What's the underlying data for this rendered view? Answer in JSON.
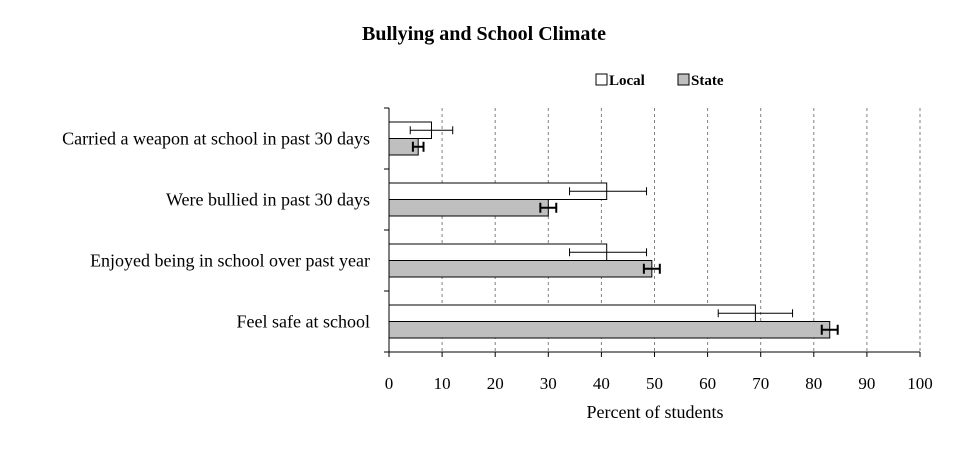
{
  "chart_data": {
    "type": "bar",
    "orientation": "horizontal",
    "title": "Bullying and School Climate",
    "xlabel": "Percent of students",
    "ylabel": "",
    "xlim": [
      0,
      100
    ],
    "xticks": [
      "0",
      "10",
      "20",
      "30",
      "40",
      "50",
      "60",
      "70",
      "80",
      "90",
      "100"
    ],
    "grid": "vertical dashed",
    "legend_position": "top-right",
    "categories": [
      "Carried a weapon at school in past 30 days",
      "Were bullied in past 30 days",
      "Enjoyed being in school over past year",
      "Feel safe at school"
    ],
    "series": [
      {
        "name": "Local",
        "color": "#ffffff",
        "values": [
          8,
          41,
          41,
          69
        ],
        "error_low": [
          4,
          34,
          34,
          62
        ],
        "error_high": [
          12,
          48.5,
          48.5,
          76
        ]
      },
      {
        "name": "State",
        "color": "#bfbfbf",
        "values": [
          5.5,
          30,
          49.5,
          83
        ],
        "error_low": [
          4.5,
          28.5,
          48,
          81.5
        ],
        "error_high": [
          6.5,
          31.5,
          51,
          84.5
        ]
      }
    ]
  }
}
